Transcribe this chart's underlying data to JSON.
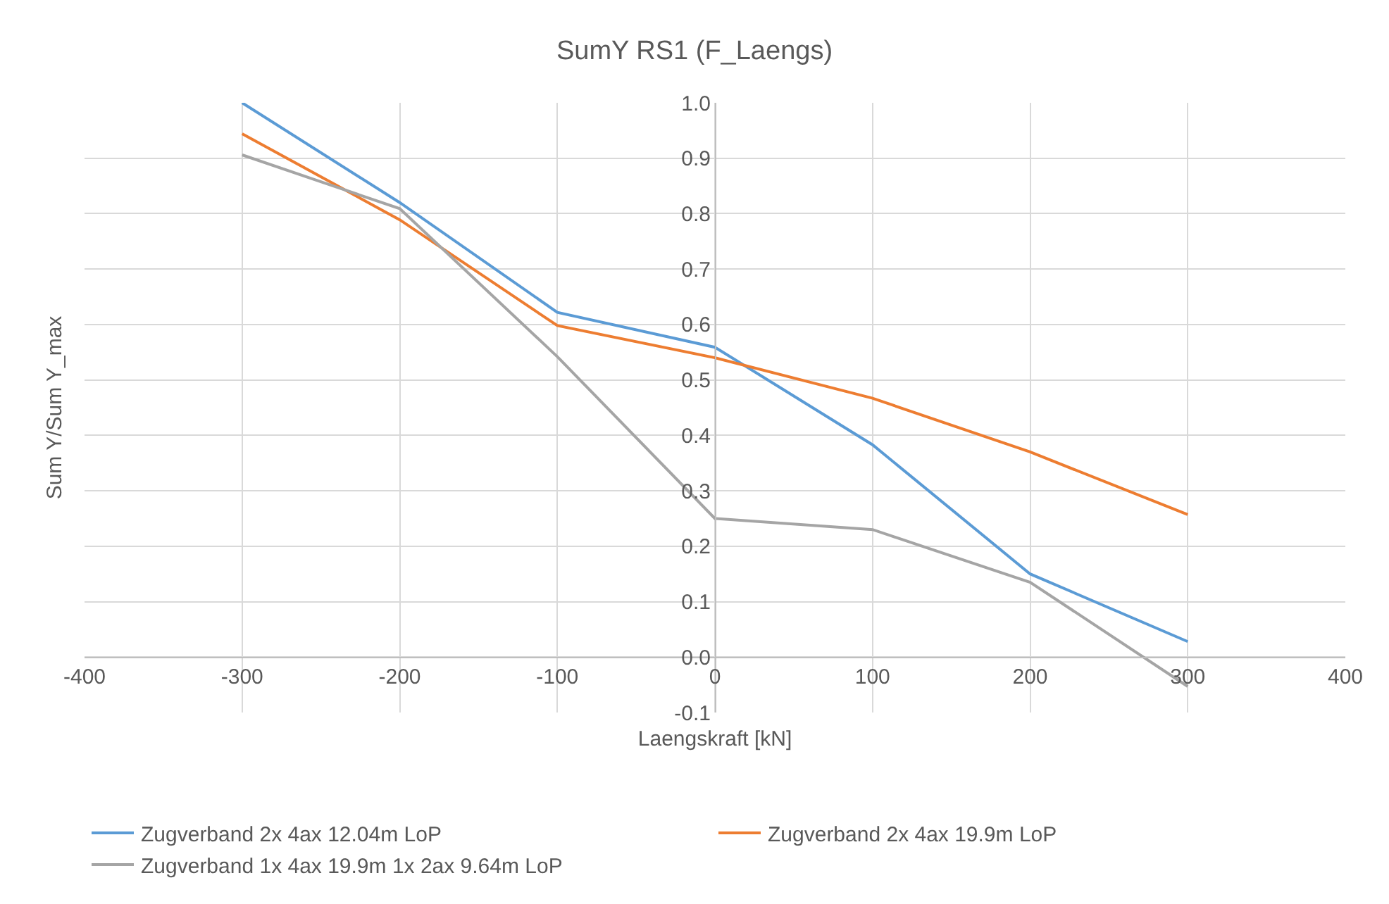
{
  "chart_data": {
    "type": "line",
    "title": "SumY RS1 (F_Laengs)",
    "xlabel": "Laengskraft [kN]",
    "ylabel": "Sum Y/Sum Y_max",
    "x": [
      -300,
      -200,
      -100,
      0,
      100,
      200,
      300
    ],
    "series": [
      {
        "name": "Zugverband 2x 4ax 12.04m LoP",
        "color": "#5b9bd5",
        "values": [
          1.0,
          0.82,
          0.622,
          0.559,
          0.383,
          0.15,
          0.028
        ]
      },
      {
        "name": "Zugverband 2x 4ax 19.9m LoP",
        "color": "#ed7d31",
        "values": [
          0.944,
          0.789,
          0.598,
          0.54,
          0.467,
          0.37,
          0.257
        ]
      },
      {
        "name": "Zugverband 1x 4ax 19.9m 1x 2ax 9.64m LoP",
        "color": "#a5a5a5",
        "values": [
          0.906,
          0.809,
          0.542,
          0.25,
          0.23,
          0.135,
          -0.053
        ]
      }
    ],
    "xlim": [
      -400,
      400
    ],
    "xticks": [
      -400,
      -300,
      -200,
      -100,
      0,
      100,
      200,
      300,
      400
    ],
    "ylim": [
      -0.1,
      1.0
    ],
    "yticks": [
      {
        "value": -0.1,
        "label": "-0.1"
      },
      {
        "value": 0,
        "label": "0.0"
      },
      {
        "value": 0.1,
        "label": "0.1"
      },
      {
        "value": 0.2,
        "label": "0.2"
      },
      {
        "value": 0.3,
        "label": "0.3"
      },
      {
        "value": 0.4,
        "label": "0.4"
      },
      {
        "value": 0.5,
        "label": "0.5"
      },
      {
        "value": 0.6,
        "label": "0.6"
      },
      {
        "value": 0.7,
        "label": "0.7"
      },
      {
        "value": 0.8,
        "label": "0.8"
      },
      {
        "value": 0.9,
        "label": "0.9"
      },
      {
        "value": 1.0,
        "label": "1.0"
      }
    ],
    "grid": true,
    "legend": "bottom",
    "marker": "none",
    "line_style": "solid"
  }
}
